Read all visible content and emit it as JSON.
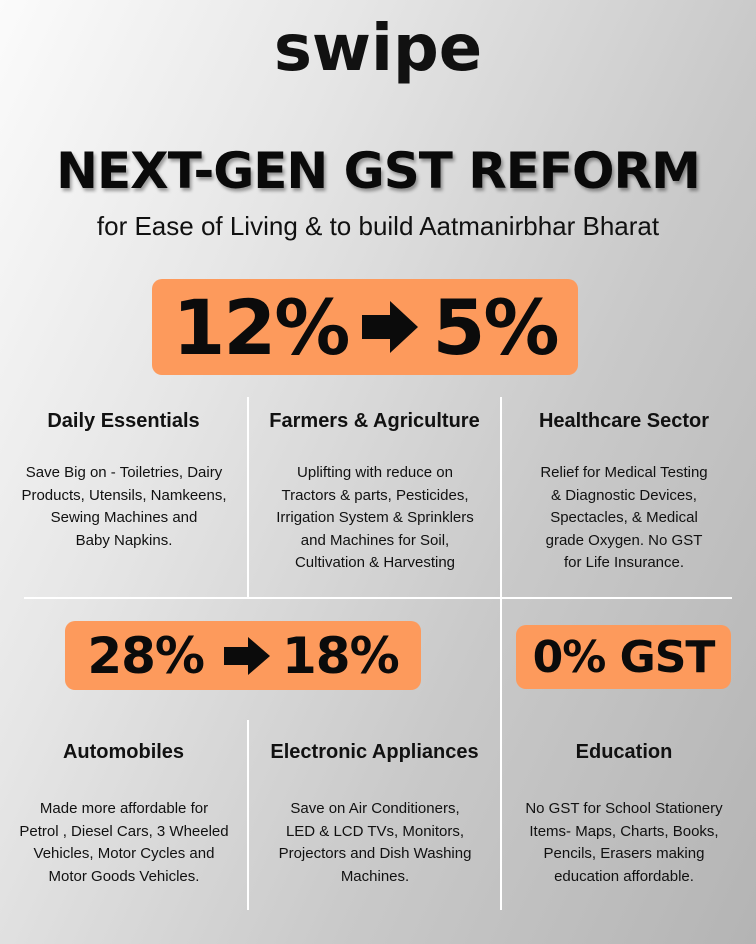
{
  "logo": "swipe",
  "title": "NEXT-GEN GST REFORM",
  "subtitle": "for Ease of Living & to build Aatmanirbhar Bharat",
  "badges": {
    "rate_cut_1": {
      "from": "12%",
      "to": "5%"
    },
    "rate_cut_2": {
      "from": "28%",
      "to": "18%"
    },
    "zero_gst": "0% GST"
  },
  "colors": {
    "accent": "#fd9a5c",
    "divider": "#ffffff",
    "text": "#111111"
  },
  "icons": {
    "arrow": "right-arrow-icon"
  },
  "sections": {
    "daily_essentials": {
      "title": "Daily Essentials",
      "lines": [
        "Save Big on  - Toiletries, Dairy",
        "Products, Utensils, Namkeens,",
        "Sewing Machines and",
        "Baby Napkins."
      ]
    },
    "farmers": {
      "title": "Farmers & Agriculture",
      "lines": [
        "Uplifting with reduce on",
        "Tractors & parts, Pesticides,",
        "Irrigation System & Sprinklers",
        "and Machines for Soil,",
        "Cultivation & Harvesting"
      ]
    },
    "healthcare": {
      "title": "Healthcare Sector",
      "lines": [
        "Relief for Medical Testing",
        "& Diagnostic Devices,",
        "Spectacles, & Medical",
        "grade Oxygen. No GST",
        "for Life Insurance."
      ]
    },
    "automobiles": {
      "title": "Automobiles",
      "lines": [
        "Made more affordable for",
        "Petrol , Diesel Cars, 3 Wheeled",
        "Vehicles, Motor Cycles and",
        "Motor Goods Vehicles."
      ]
    },
    "electronics": {
      "title": "Electronic Appliances",
      "lines": [
        "Save on  Air Conditioners,",
        "LED & LCD TVs, Monitors,",
        "Projectors and Dish Washing",
        "Machines."
      ]
    },
    "education": {
      "title": "Education",
      "lines": [
        "No GST for School Stationery",
        "Items- Maps, Charts, Books,",
        "Pencils, Erasers making",
        "education affordable."
      ]
    }
  }
}
